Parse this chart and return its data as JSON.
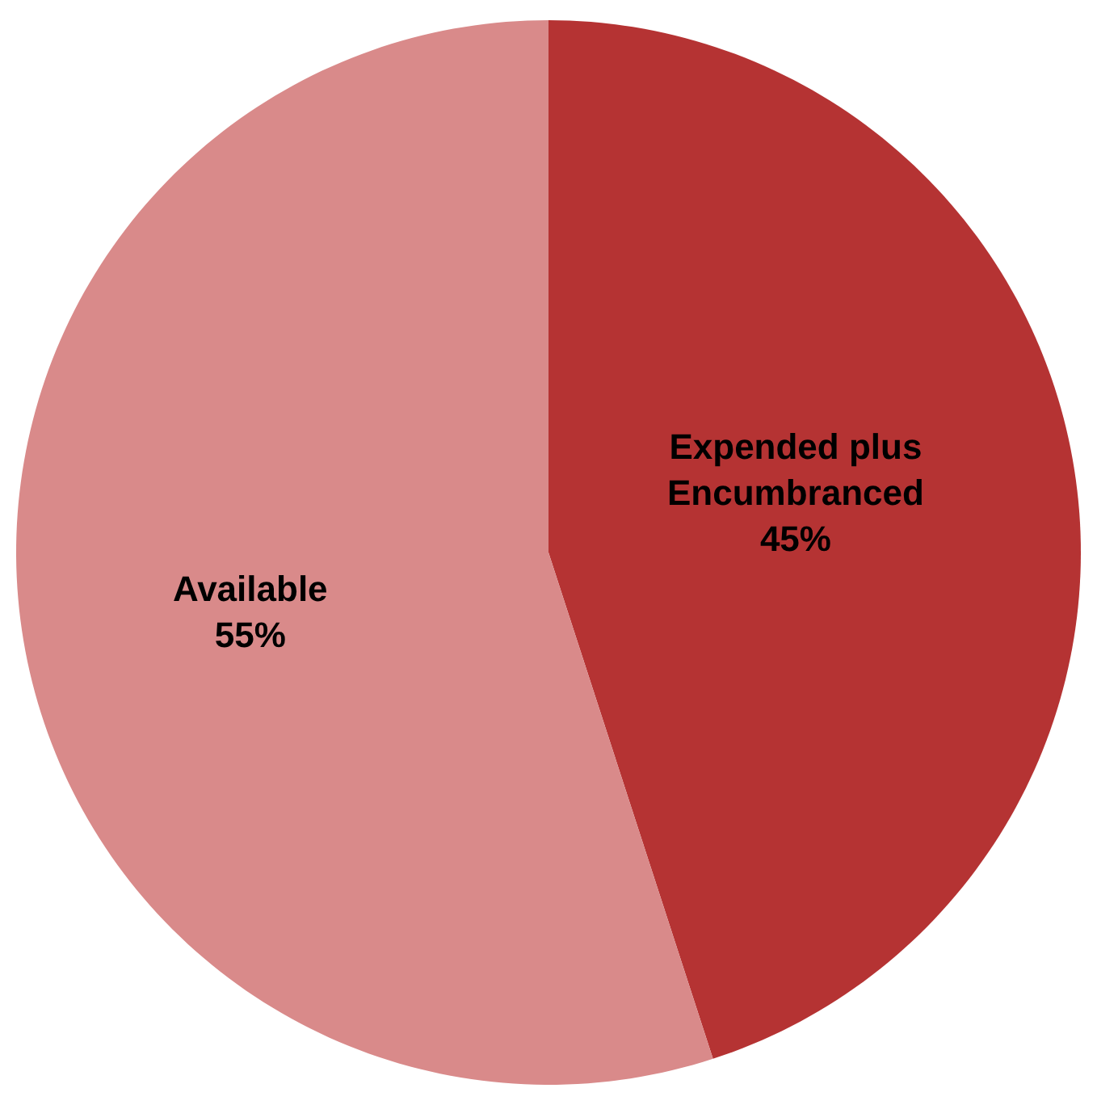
{
  "chart_data": {
    "type": "pie",
    "categories": [
      "Expended plus Encumbranced",
      "Available"
    ],
    "values": [
      45,
      55
    ],
    "value_labels": [
      "45%",
      "55%"
    ],
    "colors": [
      "#b53333",
      "#d98a8a"
    ]
  }
}
